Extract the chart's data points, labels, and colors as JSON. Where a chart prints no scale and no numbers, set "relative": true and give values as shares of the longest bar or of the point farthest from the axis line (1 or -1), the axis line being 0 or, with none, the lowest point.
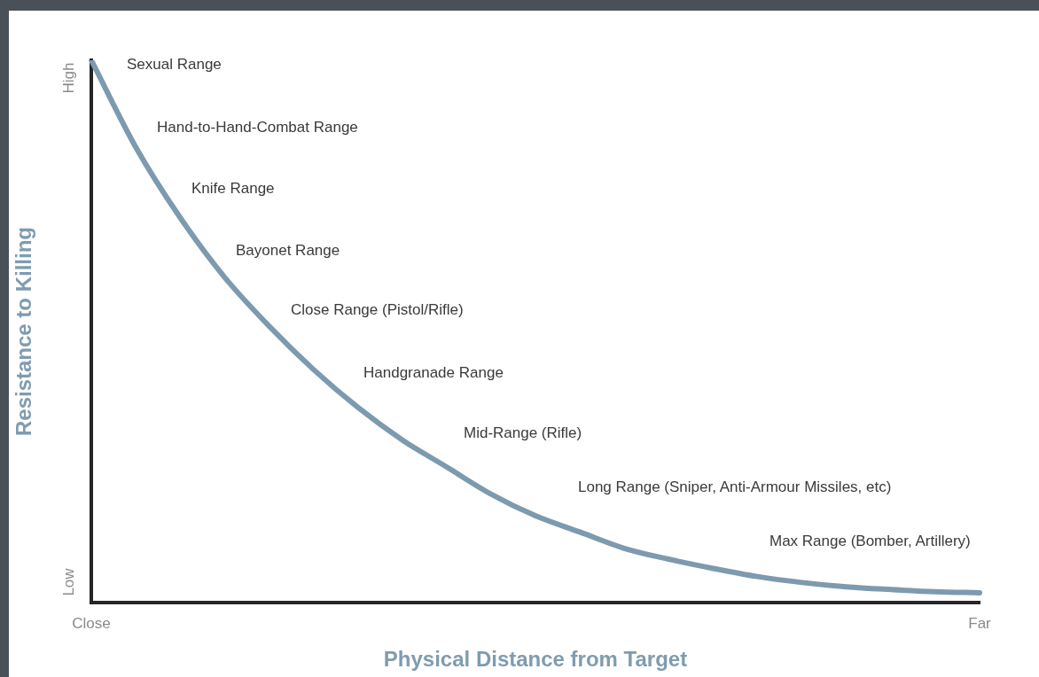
{
  "chart_data": {
    "type": "line",
    "relative": true,
    "xlabel": "Physical Distance from Target",
    "ylabel": "Resistance to Killing",
    "categories": [
      "Close",
      null,
      null,
      null,
      null,
      null,
      null,
      null,
      null,
      null,
      null,
      null,
      null,
      null,
      null,
      null,
      null,
      null,
      null,
      null,
      "Far"
    ],
    "values": [
      1.0,
      0.84,
      0.71,
      0.6,
      0.51,
      0.43,
      0.36,
      0.3,
      0.25,
      0.2,
      0.16,
      0.13,
      0.1,
      0.08,
      0.063,
      0.048,
      0.037,
      0.029,
      0.024,
      0.02,
      0.018
    ],
    "color": "#7d9aae",
    "annotations": [
      "High",
      "Low",
      "Sexual Range",
      "Hand-to-Hand-Combat Range",
      "Knife Range",
      "Bayonet Range",
      "Close Range (Pistol/Rifle)",
      "Handgranade Range",
      "Mid-Range (Rifle)",
      "Long Range (Sniper, Anti-Armour Missiles, etc)",
      "Max Range (Bomber, Artillery)"
    ],
    "grid": false,
    "legend": false,
    "marker": "none",
    "line_style": "solid"
  }
}
